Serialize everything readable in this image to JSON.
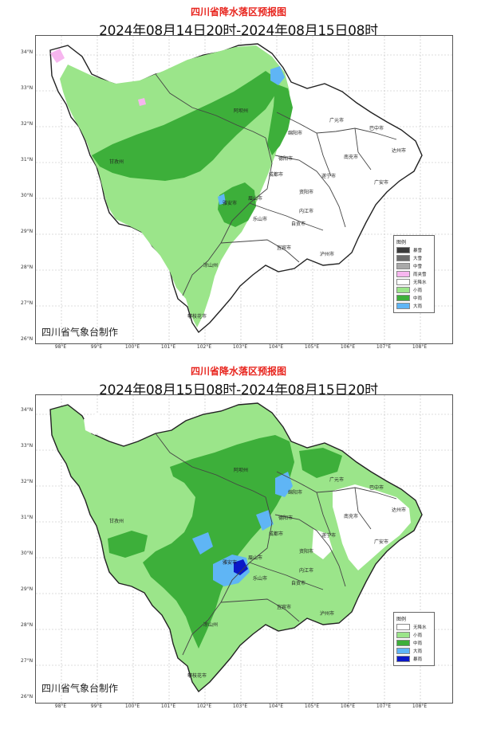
{
  "colors": {
    "title_red": "#e8261f",
    "small_rain": "#9be58a",
    "moderate_rain": "#3daf3a",
    "heavy_rain": "#5fb5f5",
    "rainstorm": "#0a18c8",
    "light_snow": "#f7b6ef",
    "no_precip": "#ffffff",
    "heavy_snow_dark": "#3b3b3b",
    "heavy_snow": "#6c6c6c",
    "moderate_snow": "#a9a9a9"
  },
  "lat_ticks": [
    "34°N",
    "33°N",
    "32°N",
    "31°N",
    "30°N",
    "29°N",
    "28°N",
    "27°N",
    "26°N"
  ],
  "lon_ticks": [
    "98°E",
    "99°E",
    "100°E",
    "101°E",
    "102°E",
    "103°E",
    "104°E",
    "105°E",
    "106°E",
    "107°E",
    "108°E"
  ],
  "maps": [
    {
      "title": "四川省降水落区预报图",
      "period": "2024年08月14日20时-2024年08月15日08时",
      "credit": "四川省气象台制作",
      "legend": {
        "title": "图例",
        "items": [
          {
            "label": "暴雪",
            "color": "#3b3b3b"
          },
          {
            "label": "大雪",
            "color": "#6c6c6c"
          },
          {
            "label": "中雪",
            "color": "#a9a9a9"
          },
          {
            "label": "雨夹雪",
            "color": "#f7b6ef"
          },
          {
            "label": "无降水",
            "color": "#ffffff"
          },
          {
            "label": "小雨",
            "color": "#9be58a"
          },
          {
            "label": "中雨",
            "color": "#3daf3a"
          },
          {
            "label": "大雨",
            "color": "#5fb5f5"
          }
        ]
      },
      "cities": [
        "阿坝州",
        "甘孜州",
        "成都市",
        "雅安市",
        "乐山市",
        "眉山市",
        "绵阳市",
        "德阳市",
        "广元市",
        "巴中市",
        "达州市",
        "南充市",
        "遂宁市",
        "资阳市",
        "内江市",
        "自贡市",
        "宜宾市",
        "泸州市",
        "广安市",
        "凉山州",
        "攀枝花市"
      ]
    },
    {
      "title": "四川省降水落区预报图",
      "period": "2024年08月15日08时-2024年08月15日20时",
      "credit": "四川省气象台制作",
      "legend": {
        "title": "图例",
        "items": [
          {
            "label": "无降水",
            "color": "#ffffff"
          },
          {
            "label": "小雨",
            "color": "#9be58a"
          },
          {
            "label": "中雨",
            "color": "#3daf3a"
          },
          {
            "label": "大雨",
            "color": "#5fb5f5"
          },
          {
            "label": "暴雨",
            "color": "#0a18c8"
          }
        ]
      },
      "cities": [
        "阿坝州",
        "甘孜州",
        "成都市",
        "雅安市",
        "乐山市",
        "眉山市",
        "绵阳市",
        "德阳市",
        "广元市",
        "巴中市",
        "达州市",
        "南充市",
        "遂宁市",
        "资阳市",
        "内江市",
        "自贡市",
        "宜宾市",
        "泸州市",
        "广安市",
        "凉山州",
        "攀枝花市"
      ]
    }
  ]
}
